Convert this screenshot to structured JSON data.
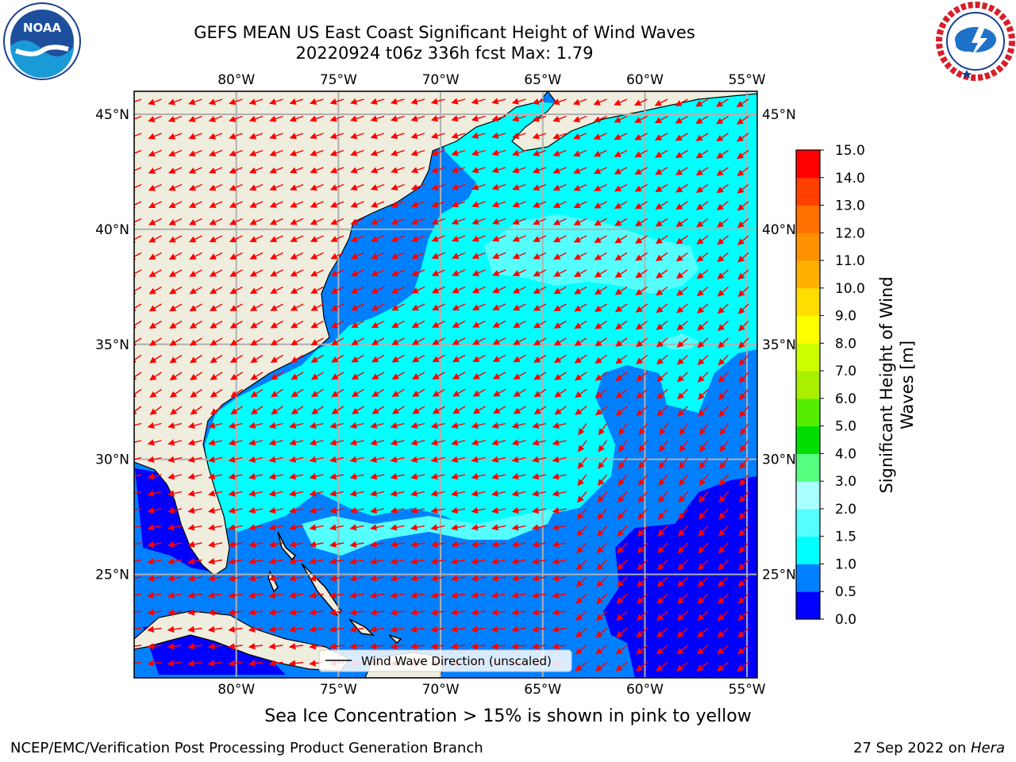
{
  "header": {
    "title_line1": "GEFS MEAN US East Coast Significant Height of Wind Waves",
    "title_line2": "20220924 t06z 336h fcst   Max: 1.79"
  },
  "logos": {
    "left": {
      "name": "noaa-logo",
      "text": "NOAA",
      "ring_text": "NATIONAL OCEANIC AND ATMOSPHERIC ADMINISTRATION · U.S. DEPARTMENT OF COMMERCE"
    },
    "right": {
      "name": "nws-logo",
      "ring_text": "NATIONAL WEATHER SERVICE"
    }
  },
  "map": {
    "lon_labels": [
      "80°W",
      "75°W",
      "70°W",
      "65°W",
      "60°W",
      "55°W"
    ],
    "lat_labels": [
      "45°N",
      "40°N",
      "35°N",
      "30°N",
      "25°N"
    ],
    "extent": {
      "lon": [
        -85,
        -54.5
      ],
      "lat": [
        20.5,
        46
      ]
    },
    "land_color": "#efedde",
    "arrow_color": "#ff0000",
    "grid": true,
    "legend_text": "Wind Wave Direction (unscaled)"
  },
  "colorbar": {
    "label": "Significant Height of Wind Waves [m]",
    "label_line1": "Significant Height of Wind",
    "label_line2": "Waves [m]",
    "ticks": [
      "0.0",
      "0.5",
      "1.0",
      "1.5",
      "2.0",
      "3.0",
      "4.0",
      "5.0",
      "6.0",
      "7.0",
      "8.0",
      "9.0",
      "10.0",
      "11.0",
      "12.0",
      "13.0",
      "14.0",
      "15.0"
    ],
    "colors": [
      "#0000ff",
      "#0080ff",
      "#00ffff",
      "#55ffff",
      "#aaffff",
      "#55ff80",
      "#00dd00",
      "#55ee00",
      "#aaee00",
      "#ccff00",
      "#ffff00",
      "#ffdd00",
      "#ffb000",
      "#ff9000",
      "#ff7000",
      "#ff4000",
      "#ff0000"
    ]
  },
  "chart_data": {
    "type": "heatmap",
    "title": "GEFS MEAN US East Coast Significant Height of Wind Waves",
    "subtitle": "20220924 t06z 336h fcst   Max: 1.79",
    "zlabel": "Significant Height of Wind Waves [m]",
    "levels": [
      0.0,
      0.5,
      1.0,
      1.5,
      2.0,
      3.0,
      4.0,
      5.0,
      6.0,
      7.0,
      8.0,
      9.0,
      10.0,
      11.0,
      12.0,
      13.0,
      14.0,
      15.0
    ],
    "max": 1.79,
    "xlim": [
      -85,
      -54.5
    ],
    "ylim": [
      20.5,
      46
    ]
  },
  "footer": {
    "ice_note": "Sea Ice Concentration > 15% is shown in pink to yellow",
    "left": "NCEP/EMC/Verification Post Processing Product Generation Branch",
    "right_date": "27 Sep 2022 on ",
    "right_host": "Hera"
  }
}
